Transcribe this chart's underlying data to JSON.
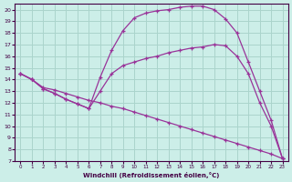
{
  "xlabel": "Windchill (Refroidissement éolien,°C)",
  "background_color": "#cceee8",
  "grid_color": "#aad4cc",
  "line_color": "#993399",
  "xlim": [
    -0.5,
    23.5
  ],
  "ylim": [
    7,
    20.5
  ],
  "xticks": [
    0,
    1,
    2,
    3,
    4,
    5,
    6,
    7,
    8,
    9,
    10,
    11,
    12,
    13,
    14,
    15,
    16,
    17,
    18,
    19,
    20,
    21,
    22,
    23
  ],
  "yticks": [
    7,
    8,
    9,
    10,
    11,
    12,
    13,
    14,
    15,
    16,
    17,
    18,
    19,
    20
  ],
  "line1_x": [
    0,
    1,
    2,
    3,
    4,
    5,
    6,
    7,
    8,
    9,
    10,
    11,
    12,
    13,
    14,
    15,
    16,
    17,
    18,
    19,
    20,
    21,
    22,
    23
  ],
  "line1_y": [
    14.5,
    14.0,
    13.3,
    13.1,
    12.8,
    12.5,
    12.2,
    12.0,
    11.7,
    11.5,
    11.2,
    10.9,
    10.6,
    10.3,
    10.0,
    9.7,
    9.4,
    9.1,
    8.8,
    8.5,
    8.2,
    7.9,
    7.6,
    7.2
  ],
  "line2_x": [
    0,
    1,
    2,
    3,
    4,
    5,
    6,
    7,
    8,
    9,
    10,
    11,
    12,
    13,
    14,
    15,
    16,
    17,
    18,
    19,
    20,
    21,
    22,
    23
  ],
  "line2_y": [
    14.5,
    14.0,
    13.2,
    12.8,
    12.3,
    11.9,
    11.5,
    13.0,
    14.5,
    15.2,
    15.5,
    15.8,
    16.0,
    16.3,
    16.5,
    16.7,
    16.8,
    17.0,
    16.9,
    16.0,
    14.5,
    12.0,
    10.0,
    7.2
  ],
  "line3_x": [
    0,
    1,
    2,
    3,
    4,
    5,
    6,
    7,
    8,
    9,
    10,
    11,
    12,
    13,
    14,
    15,
    16,
    17,
    18,
    19,
    20,
    21,
    22,
    23
  ],
  "line3_y": [
    14.5,
    14.0,
    13.2,
    12.8,
    12.3,
    11.9,
    11.5,
    14.2,
    16.5,
    18.2,
    19.3,
    19.7,
    19.9,
    20.0,
    20.2,
    20.3,
    20.3,
    20.0,
    19.2,
    18.0,
    15.5,
    13.0,
    10.5,
    7.2
  ]
}
